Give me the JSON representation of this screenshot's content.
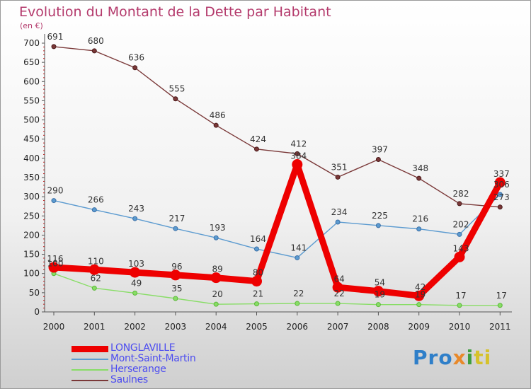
{
  "chart_data": {
    "type": "line",
    "title": "Evolution du Montant de la Dette par Habitant",
    "subtitle": "(en €)",
    "categories": [
      "2000",
      "2001",
      "2002",
      "2003",
      "2004",
      "2005",
      "2006",
      "2007",
      "2008",
      "2009",
      "2010",
      "2011"
    ],
    "ylim": [
      0,
      700
    ],
    "yticks": [
      0,
      50,
      100,
      150,
      200,
      250,
      300,
      350,
      400,
      450,
      500,
      550,
      600,
      650,
      700
    ],
    "grid": false,
    "legend_position": "bottom-left",
    "series": [
      {
        "name": "LONGLAVILLE",
        "color": "#ee0000",
        "values": [
          116,
          110,
          103,
          96,
          89,
          80,
          384,
          64,
          54,
          42,
          143,
          337
        ],
        "labels": [
          "116",
          "110",
          "103",
          "96",
          "89",
          "80",
          "384",
          "64",
          "54",
          "42",
          "143",
          "337"
        ]
      },
      {
        "name": "Mont-Saint-Martin",
        "color": "#5c9bd0",
        "values": [
          290,
          266,
          243,
          217,
          193,
          164,
          141,
          234,
          225,
          216,
          202,
          306
        ],
        "labels": [
          "290",
          "266",
          "243",
          "217",
          "193",
          "164",
          "141",
          "234",
          "225",
          "216",
          "202",
          "306"
        ]
      },
      {
        "name": "Herserange",
        "color": "#88dd66",
        "values": [
          100,
          62,
          49,
          35,
          20,
          21,
          22,
          22,
          19,
          19,
          17,
          17
        ],
        "labels": [
          "100",
          "62",
          "49",
          "35",
          "20",
          "21",
          "22",
          "22",
          "19",
          "19",
          "17",
          "17"
        ]
      },
      {
        "name": "Saulnes",
        "color": "#7a3838",
        "values": [
          691,
          680,
          636,
          555,
          486,
          424,
          412,
          351,
          397,
          348,
          282,
          273
        ],
        "labels": [
          "691",
          "680",
          "636",
          "555",
          "486",
          "424",
          "412",
          "351",
          "397",
          "348",
          "282",
          "273"
        ]
      }
    ]
  },
  "logo": {
    "text": "Proxiti",
    "parts": [
      "Pro",
      "x",
      "i",
      "ti"
    ]
  }
}
